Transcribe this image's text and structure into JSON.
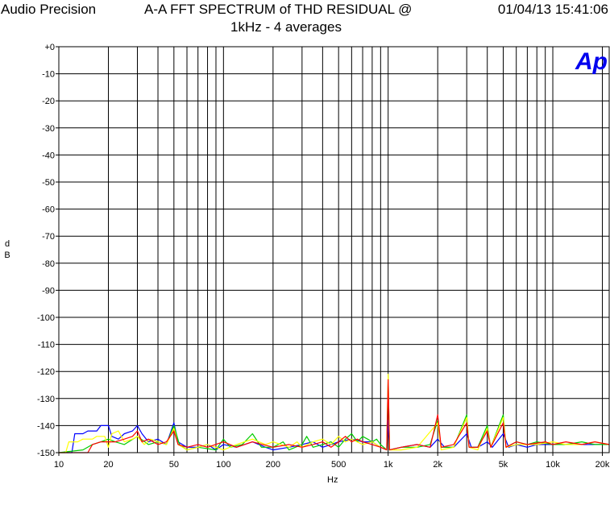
{
  "header": {
    "brand": "Audio Precision",
    "title": "A-A FFT SPECTRUM of THD RESIDUAL  @",
    "timestamp": "01/04/13 15:41:06",
    "subtitle": "1kHz - 4 averages"
  },
  "logo_text": "Ap",
  "colors": {
    "grid": "#000000",
    "logo": "#0000ee",
    "blue": "#0000ff",
    "red": "#ff0000",
    "green": "#00cc00",
    "yellow": "#ffff00"
  },
  "chart_data": {
    "type": "line",
    "xlabel": "Hz",
    "ylabel": "d\nB",
    "xscale": "log",
    "xlim": [
      10,
      22000
    ],
    "ylim": [
      -150,
      0
    ],
    "grid": true,
    "yticks": [
      {
        "v": 0,
        "label": "+0"
      },
      {
        "v": -10,
        "label": "-10"
      },
      {
        "v": -20,
        "label": "-20"
      },
      {
        "v": -30,
        "label": "-30"
      },
      {
        "v": -40,
        "label": "-40"
      },
      {
        "v": -50,
        "label": "-50"
      },
      {
        "v": -60,
        "label": "-60"
      },
      {
        "v": -70,
        "label": "-70"
      },
      {
        "v": -80,
        "label": "-80"
      },
      {
        "v": -90,
        "label": "-90"
      },
      {
        "v": -100,
        "label": "-100"
      },
      {
        "v": -110,
        "label": "-110"
      },
      {
        "v": -120,
        "label": "-120"
      },
      {
        "v": -130,
        "label": "-130"
      },
      {
        "v": -140,
        "label": "-140"
      },
      {
        "v": -150,
        "label": "-150"
      }
    ],
    "xticks": [
      {
        "v": 10,
        "label": "10"
      },
      {
        "v": 20,
        "label": "20"
      },
      {
        "v": 50,
        "label": "50"
      },
      {
        "v": 100,
        "label": "100"
      },
      {
        "v": 200,
        "label": "200"
      },
      {
        "v": 500,
        "label": "500"
      },
      {
        "v": 1000,
        "label": "1k"
      },
      {
        "v": 2000,
        "label": "2k"
      },
      {
        "v": 5000,
        "label": "5k"
      },
      {
        "v": 10000,
        "label": "10k"
      },
      {
        "v": 20000,
        "label": "20k"
      }
    ],
    "series": [
      {
        "color": "#0000ff",
        "points": [
          [
            10,
            -150
          ],
          [
            12,
            -150
          ],
          [
            12.5,
            -143
          ],
          [
            14,
            -143
          ],
          [
            15,
            -142
          ],
          [
            17,
            -142
          ],
          [
            18,
            -140
          ],
          [
            20,
            -140
          ],
          [
            21,
            -144
          ],
          [
            23,
            -145
          ],
          [
            25,
            -143
          ],
          [
            28,
            -142
          ],
          [
            30,
            -140
          ],
          [
            32,
            -143
          ],
          [
            35,
            -146
          ],
          [
            40,
            -145
          ],
          [
            45,
            -147
          ],
          [
            50,
            -139
          ],
          [
            53,
            -146
          ],
          [
            60,
            -148
          ],
          [
            70,
            -148
          ],
          [
            80,
            -147
          ],
          [
            90,
            -149
          ],
          [
            100,
            -147
          ],
          [
            120,
            -148
          ],
          [
            150,
            -146
          ],
          [
            180,
            -148
          ],
          [
            200,
            -149
          ],
          [
            250,
            -148
          ],
          [
            300,
            -147
          ],
          [
            350,
            -146
          ],
          [
            400,
            -148
          ],
          [
            450,
            -147
          ],
          [
            500,
            -146
          ],
          [
            600,
            -145
          ],
          [
            700,
            -146
          ],
          [
            800,
            -146
          ],
          [
            900,
            -148
          ],
          [
            980,
            -149
          ],
          [
            1000,
            -138
          ],
          [
            1020,
            -149
          ],
          [
            1200,
            -148
          ],
          [
            1500,
            -147
          ],
          [
            1800,
            -148
          ],
          [
            2000,
            -145
          ],
          [
            2200,
            -148
          ],
          [
            2500,
            -148
          ],
          [
            3000,
            -143
          ],
          [
            3200,
            -148
          ],
          [
            3500,
            -148
          ],
          [
            4000,
            -146
          ],
          [
            4300,
            -148
          ],
          [
            5000,
            -143
          ],
          [
            5400,
            -148
          ],
          [
            6000,
            -147
          ],
          [
            7000,
            -148
          ],
          [
            8000,
            -147
          ],
          [
            10000,
            -147
          ],
          [
            12000,
            -147
          ],
          [
            15000,
            -147
          ],
          [
            18000,
            -147
          ],
          [
            22000,
            -147
          ]
        ]
      },
      {
        "color": "#00cc00",
        "points": [
          [
            10,
            -150
          ],
          [
            14,
            -149
          ],
          [
            16,
            -147
          ],
          [
            18,
            -146
          ],
          [
            20,
            -145
          ],
          [
            22,
            -146
          ],
          [
            25,
            -147
          ],
          [
            30,
            -144
          ],
          [
            35,
            -147
          ],
          [
            40,
            -146
          ],
          [
            45,
            -147
          ],
          [
            50,
            -140
          ],
          [
            54,
            -147
          ],
          [
            60,
            -149
          ],
          [
            70,
            -148
          ],
          [
            90,
            -149
          ],
          [
            100,
            -145
          ],
          [
            110,
            -148
          ],
          [
            130,
            -147
          ],
          [
            150,
            -143
          ],
          [
            170,
            -148
          ],
          [
            200,
            -148
          ],
          [
            230,
            -146
          ],
          [
            250,
            -149
          ],
          [
            300,
            -147
          ],
          [
            320,
            -144
          ],
          [
            350,
            -148
          ],
          [
            400,
            -147
          ],
          [
            450,
            -146
          ],
          [
            500,
            -148
          ],
          [
            550,
            -145
          ],
          [
            600,
            -143
          ],
          [
            650,
            -146
          ],
          [
            700,
            -144
          ],
          [
            750,
            -145
          ],
          [
            800,
            -146
          ],
          [
            850,
            -145
          ],
          [
            900,
            -147
          ],
          [
            980,
            -149
          ],
          [
            1000,
            -122
          ],
          [
            1020,
            -149
          ],
          [
            1200,
            -148
          ],
          [
            1500,
            -148
          ],
          [
            1800,
            -147
          ],
          [
            2000,
            -138
          ],
          [
            2100,
            -148
          ],
          [
            2500,
            -148
          ],
          [
            3000,
            -136
          ],
          [
            3100,
            -148
          ],
          [
            3500,
            -148
          ],
          [
            4000,
            -140
          ],
          [
            4200,
            -148
          ],
          [
            5000,
            -136
          ],
          [
            5200,
            -148
          ],
          [
            6000,
            -146
          ],
          [
            7000,
            -147
          ],
          [
            8000,
            -146
          ],
          [
            10000,
            -147
          ],
          [
            12000,
            -147
          ],
          [
            15000,
            -146
          ],
          [
            18000,
            -147
          ],
          [
            22000,
            -147
          ]
        ]
      },
      {
        "color": "#ffff00",
        "points": [
          [
            10,
            -150
          ],
          [
            11,
            -150
          ],
          [
            11.5,
            -146
          ],
          [
            13,
            -146
          ],
          [
            14,
            -145
          ],
          [
            16,
            -145
          ],
          [
            17,
            -144
          ],
          [
            19,
            -144
          ],
          [
            20,
            -148
          ],
          [
            21,
            -143
          ],
          [
            23,
            -142
          ],
          [
            25,
            -146
          ],
          [
            28,
            -145
          ],
          [
            30,
            -144
          ],
          [
            33,
            -147
          ],
          [
            36,
            -145
          ],
          [
            40,
            -146
          ],
          [
            45,
            -147
          ],
          [
            50,
            -141
          ],
          [
            53,
            -147
          ],
          [
            60,
            -149
          ],
          [
            70,
            -148
          ],
          [
            80,
            -147
          ],
          [
            100,
            -149
          ],
          [
            120,
            -147
          ],
          [
            150,
            -145
          ],
          [
            180,
            -147
          ],
          [
            200,
            -146
          ],
          [
            250,
            -148
          ],
          [
            280,
            -146
          ],
          [
            300,
            -148
          ],
          [
            350,
            -146
          ],
          [
            400,
            -145
          ],
          [
            450,
            -147
          ],
          [
            500,
            -144
          ],
          [
            550,
            -146
          ],
          [
            600,
            -145
          ],
          [
            700,
            -147
          ],
          [
            800,
            -146
          ],
          [
            900,
            -148
          ],
          [
            980,
            -149
          ],
          [
            1000,
            -121
          ],
          [
            1020,
            -149
          ],
          [
            1200,
            -149
          ],
          [
            1500,
            -148
          ],
          [
            2000,
            -139
          ],
          [
            2100,
            -149
          ],
          [
            2500,
            -148
          ],
          [
            3000,
            -137
          ],
          [
            3100,
            -148
          ],
          [
            3500,
            -149
          ],
          [
            4000,
            -141
          ],
          [
            4200,
            -148
          ],
          [
            5000,
            -137
          ],
          [
            5200,
            -148
          ],
          [
            6000,
            -147
          ],
          [
            8000,
            -147
          ],
          [
            10000,
            -146
          ],
          [
            12000,
            -147
          ],
          [
            15000,
            -147
          ],
          [
            18000,
            -146
          ],
          [
            22000,
            -147
          ]
        ]
      },
      {
        "color": "#ff0000",
        "points": [
          [
            10,
            -150
          ],
          [
            15,
            -150
          ],
          [
            16,
            -147
          ],
          [
            18,
            -146
          ],
          [
            20,
            -146
          ],
          [
            22,
            -146
          ],
          [
            25,
            -145
          ],
          [
            28,
            -144
          ],
          [
            30,
            -142
          ],
          [
            32,
            -146
          ],
          [
            35,
            -145
          ],
          [
            40,
            -147
          ],
          [
            45,
            -146
          ],
          [
            50,
            -142
          ],
          [
            53,
            -147
          ],
          [
            60,
            -148
          ],
          [
            70,
            -147
          ],
          [
            80,
            -148
          ],
          [
            100,
            -146
          ],
          [
            120,
            -148
          ],
          [
            150,
            -146
          ],
          [
            200,
            -148
          ],
          [
            250,
            -147
          ],
          [
            300,
            -148
          ],
          [
            350,
            -147
          ],
          [
            400,
            -146
          ],
          [
            450,
            -148
          ],
          [
            500,
            -146
          ],
          [
            550,
            -144
          ],
          [
            600,
            -146
          ],
          [
            650,
            -145
          ],
          [
            700,
            -146
          ],
          [
            800,
            -147
          ],
          [
            900,
            -148
          ],
          [
            980,
            -149
          ],
          [
            1000,
            -123
          ],
          [
            1020,
            -149
          ],
          [
            1200,
            -148
          ],
          [
            1500,
            -147
          ],
          [
            1800,
            -148
          ],
          [
            2000,
            -136
          ],
          [
            2100,
            -148
          ],
          [
            2500,
            -147
          ],
          [
            3000,
            -139
          ],
          [
            3100,
            -148
          ],
          [
            3500,
            -148
          ],
          [
            4000,
            -142
          ],
          [
            4200,
            -148
          ],
          [
            5000,
            -139
          ],
          [
            5200,
            -148
          ],
          [
            6000,
            -146
          ],
          [
            7000,
            -147
          ],
          [
            9000,
            -146
          ],
          [
            10000,
            -147
          ],
          [
            12000,
            -146
          ],
          [
            15000,
            -147
          ],
          [
            18000,
            -146
          ],
          [
            22000,
            -147
          ]
        ]
      }
    ]
  }
}
